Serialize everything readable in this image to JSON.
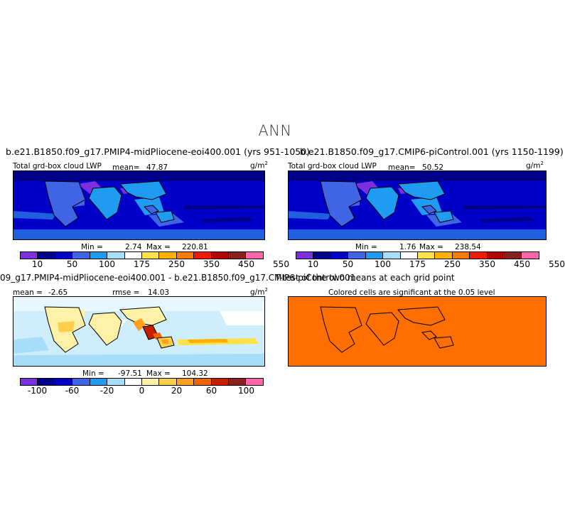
{
  "page_title": "ANN",
  "colors": {
    "abs_scale": [
      "#7b2fe0",
      "#00008a",
      "#0000c8",
      "#3f64e6",
      "#1f9cf2",
      "#a6ddf8",
      "#ffffff",
      "#ffe24a",
      "#ffb000",
      "#ff7a00",
      "#f21a00",
      "#b40000",
      "#8a1f1f",
      "#ff66aa"
    ],
    "diff_scale": [
      "#7b2fe0",
      "#00008a",
      "#0000c8",
      "#3f64e6",
      "#1f9cf2",
      "#a6ddf8",
      "#ffffff",
      "#fff1a8",
      "#ffce4a",
      "#ffa020",
      "#f26600",
      "#c81e00",
      "#8a1f1f",
      "#ff66aa"
    ],
    "ttest_fill": "#ff6e00"
  },
  "chart_data": [
    {
      "type": "heatmap",
      "title": "b.e21.B1850.f09_g17.PMIP4-midPliocene-eoi400.001 (yrs 951-1050)",
      "variable": "Total grd-box cloud LWP",
      "units": "g/m",
      "units_exp": "2",
      "mean_label": "mean=",
      "mean": "47.87",
      "min_label": "Min =",
      "min": "2.74",
      "max_label": "Max =",
      "max": "220.81",
      "colorbar_ticks": [
        "10",
        "50",
        "100",
        "175",
        "250",
        "350",
        "450",
        "550"
      ]
    },
    {
      "type": "heatmap",
      "title": "b.e21.B1850.f09_g17.CMIP6-piControl.001 (yrs 1150-1199)",
      "variable": "Total grd-box cloud LWP",
      "units": "g/m",
      "units_exp": "2",
      "mean_label": "mean=",
      "mean": "50.52",
      "min_label": "Min =",
      "min": "1.76",
      "max_label": "Max =",
      "max": "238.54",
      "colorbar_ticks": [
        "10",
        "50",
        "100",
        "175",
        "250",
        "350",
        "450",
        "550"
      ]
    },
    {
      "type": "heatmap",
      "title": "09_g17.PMIP4-midPliocene-eoi400.001 - b.e21.B1850.f09_g17.CMIP6-piControl.001",
      "mean_label": "mean =",
      "mean": "-2.65",
      "rmse_label": "rmse =",
      "rmse": "14.03",
      "units": "g/m",
      "units_exp": "2",
      "min_label": "Min =",
      "min": "-97.51",
      "max_label": "Max =",
      "max": "104.32",
      "colorbar_ticks": [
        "-100",
        "-60",
        "-20",
        "0",
        "20",
        "60",
        "100"
      ]
    },
    {
      "type": "heatmap",
      "title": "T-test of the two means at each grid point",
      "subtitle": "Colored cells are significant at the 0.05 level"
    }
  ]
}
